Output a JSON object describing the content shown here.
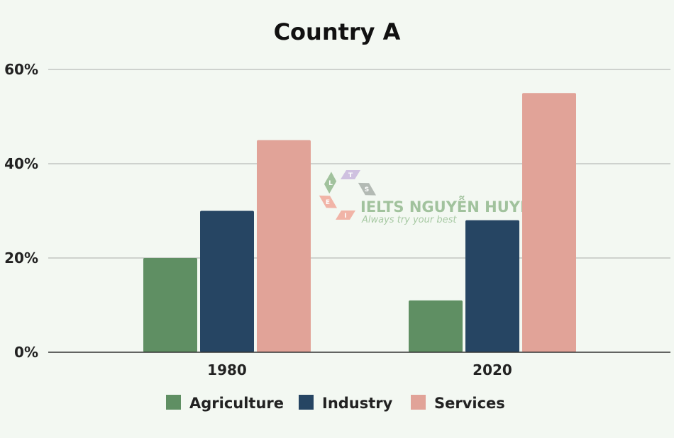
{
  "chart_data": {
    "type": "bar",
    "title": "Country A",
    "categories": [
      "1980",
      "2020"
    ],
    "series": [
      {
        "name": "Agriculture",
        "values": [
          20,
          11
        ],
        "color": "#5f8f63"
      },
      {
        "name": "Industry",
        "values": [
          30,
          28
        ],
        "color": "#264563"
      },
      {
        "name": "Services",
        "values": [
          45,
          55
        ],
        "color": "#e1a398"
      }
    ],
    "xlabel": "",
    "ylabel": "",
    "ylim": [
      0,
      60
    ],
    "yticks": [
      "0%",
      "20%",
      "40%",
      "60%"
    ],
    "grid": true,
    "legend": "bottom"
  },
  "watermark": {
    "title": "IELTS NGUYỄN HUYỀN",
    "tagline": "Always try your best",
    "letters": [
      "L",
      "T",
      "S",
      "E",
      "I"
    ],
    "colors": [
      "#93b98f",
      "#c9b8de",
      "#a9b0aa",
      "#f1a99b",
      "#f1a99b"
    ]
  }
}
